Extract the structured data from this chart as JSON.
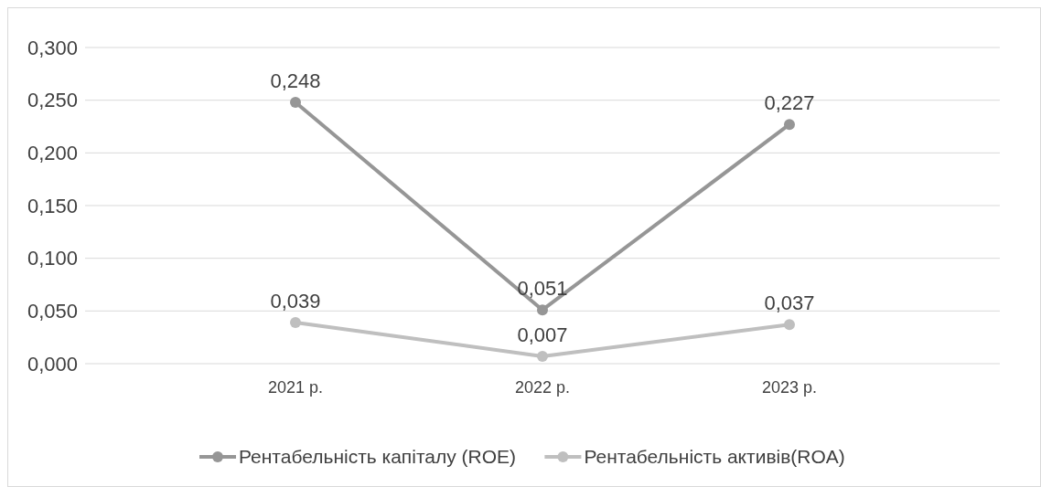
{
  "chart_data": {
    "type": "line",
    "categories": [
      "2021 р.",
      "2022 р.",
      "2023 р."
    ],
    "series": [
      {
        "name": "Рентабельність капіталу (ROE)",
        "color": "#969696",
        "values": [
          0.248,
          0.051,
          0.227
        ],
        "value_labels": [
          "0,248",
          "0,051",
          "0,227"
        ]
      },
      {
        "name": "Рентабельність активів(ROA)",
        "color": "#bfbfbf",
        "values": [
          0.039,
          0.007,
          0.037
        ],
        "value_labels": [
          "0,039",
          "0,007",
          "0,037"
        ]
      }
    ],
    "ylim": [
      0,
      0.3
    ],
    "yticks": [
      {
        "value": 0,
        "label": "0,000"
      },
      {
        "value": 0.05,
        "label": "0,050"
      },
      {
        "value": 0.1,
        "label": "0,100"
      },
      {
        "value": 0.15,
        "label": "0,150"
      },
      {
        "value": 0.2,
        "label": "0,200"
      },
      {
        "value": 0.25,
        "label": "0,250"
      },
      {
        "value": 0.3,
        "label": "0,300"
      }
    ],
    "grid": "y",
    "legend": "bottom",
    "marker": "circle",
    "line_style": "solid"
  }
}
